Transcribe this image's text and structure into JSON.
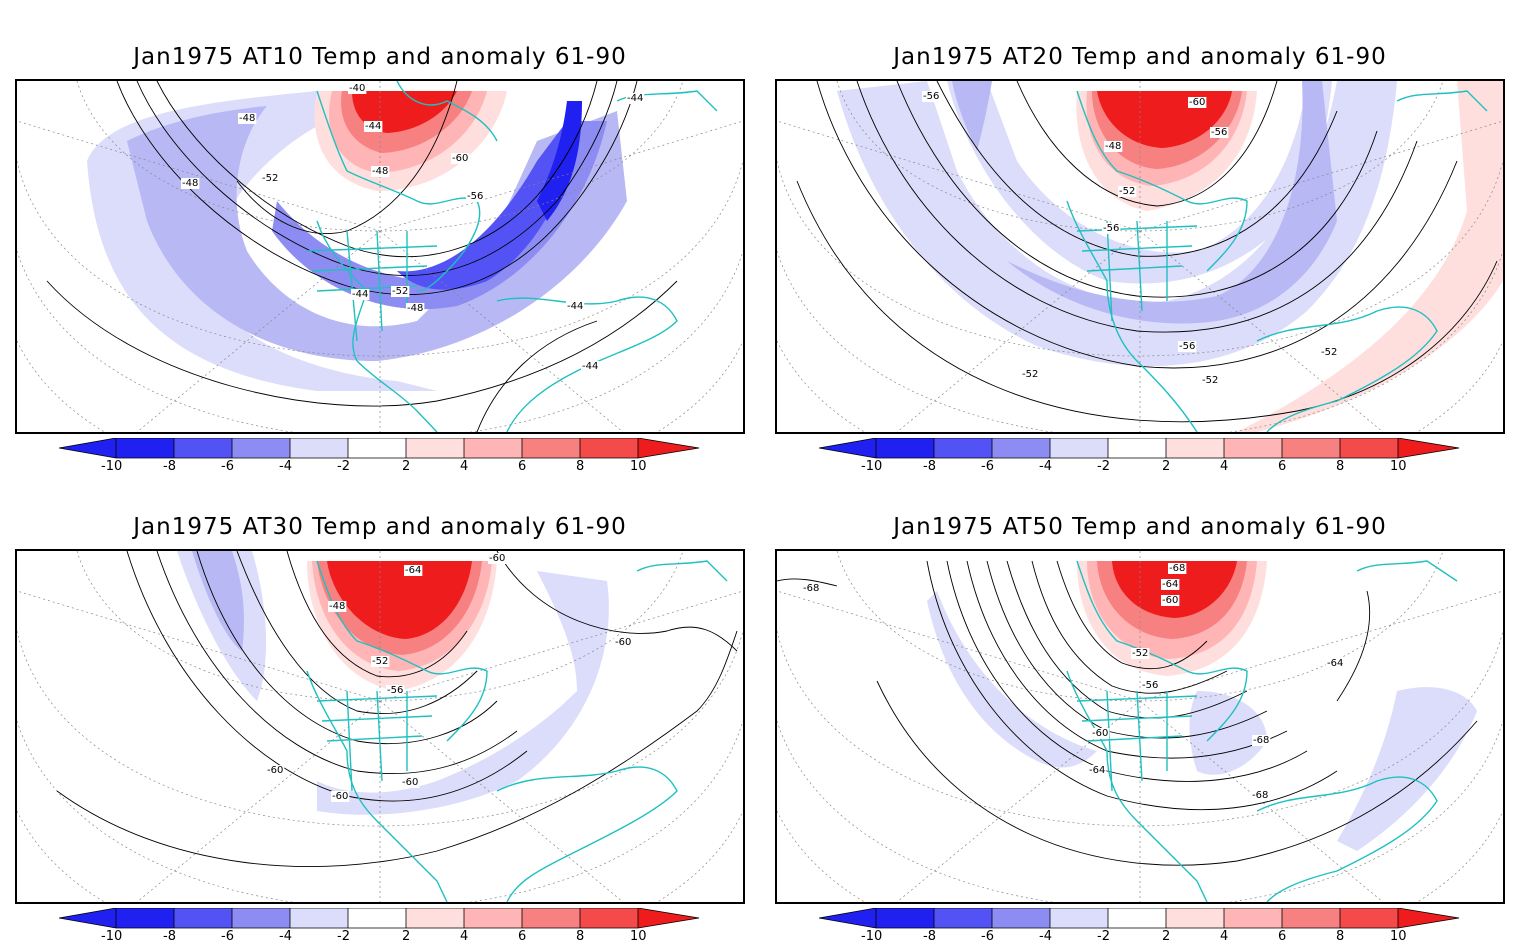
{
  "colors": {
    "neg_10": "#2020f0",
    "neg_8": "#5252f5",
    "neg_6": "#8c8cf3",
    "neg_4": "#b8b8f5",
    "neg_2": "#dcdcfb",
    "pos_2": "#ffdede",
    "pos_4": "#ffb5b5",
    "pos_6": "#f78080",
    "pos_8": "#f44a4a",
    "pos_10": "#ee1c1c",
    "coastline": "#20c0c0",
    "contour": "#000000",
    "frame": "#000000"
  },
  "colorbar": {
    "ticks": [
      "-10",
      "-8",
      "-6",
      "-4",
      "-2",
      "2",
      "4",
      "6",
      "8",
      "10"
    ]
  },
  "panels": [
    {
      "title": "Jan1975 AT10 Temp and anomaly 61-90",
      "level": "AT10",
      "contour_labels": [
        "-40",
        "-44",
        "-48",
        "-48",
        "-52",
        "-60",
        "-48",
        "-56",
        "-52",
        "-44",
        "-48",
        "-44",
        "-44",
        "-44"
      ]
    },
    {
      "title": "Jan1975 AT20 Temp and anomaly 61-90",
      "level": "AT20",
      "contour_labels": [
        "-56",
        "-60",
        "-56",
        "-48",
        "-52",
        "-56",
        "-56",
        "-52",
        "-52",
        "-52"
      ]
    },
    {
      "title": "Jan1975 AT30 Temp and anomaly 61-90",
      "level": "AT30",
      "contour_labels": [
        "-64",
        "-60",
        "-48",
        "-60",
        "-52",
        "-56",
        "-60",
        "-60",
        "-60"
      ]
    },
    {
      "title": "Jan1975 AT50 Temp and anomaly 61-90",
      "level": "AT50",
      "contour_labels": [
        "-68",
        "-68",
        "-64",
        "-60",
        "-64",
        "-52",
        "-56",
        "-60",
        "-68",
        "-64",
        "-68"
      ]
    }
  ]
}
